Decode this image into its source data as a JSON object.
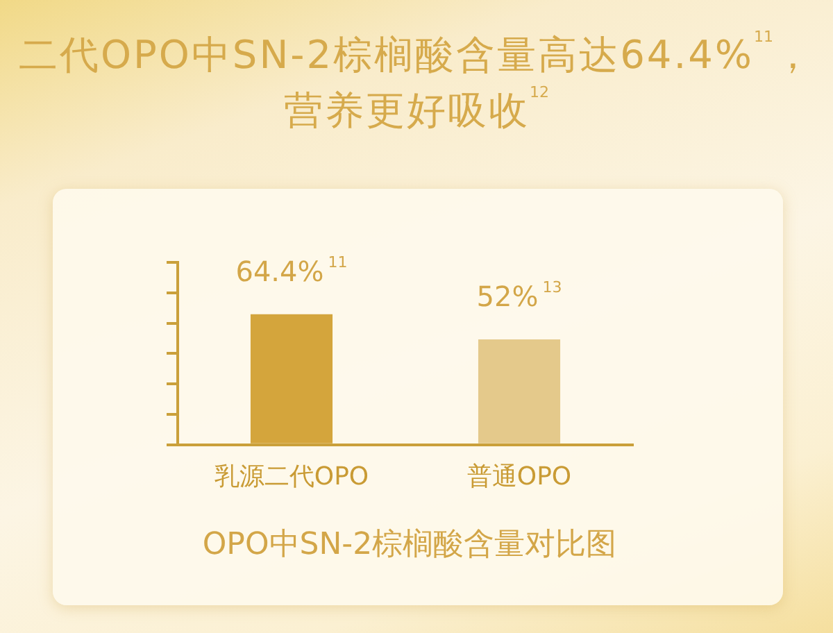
{
  "chart_data": {
    "type": "bar",
    "title": "二代OPO中SN-2棕榈酸含量高达64.4%$^{11}$，营养更好吸收$^{12}$",
    "categories": [
      "乳源二代OPO",
      "普通OPO"
    ],
    "values": [
      64.4,
      52
    ],
    "colors": [
      "#d4a53c",
      "#e4c98b"
    ],
    "value_labels": [
      "64.4%$^{11}$",
      "52%$^{13}$"
    ],
    "ylim": [
      0,
      90
    ],
    "yticks": [
      {
        "value": 0,
        "label": null
      },
      {
        "value": 15,
        "label": null
      },
      {
        "value": 30,
        "label": null
      },
      {
        "value": 45,
        "label": null
      },
      {
        "value": 60,
        "label": null
      },
      {
        "value": 75,
        "label": null
      },
      {
        "value": 90,
        "label": null
      }
    ],
    "tick_labels": "x",
    "annotations": [
      "OPO中SN-2棕榈酸含量对比图"
    ]
  }
}
